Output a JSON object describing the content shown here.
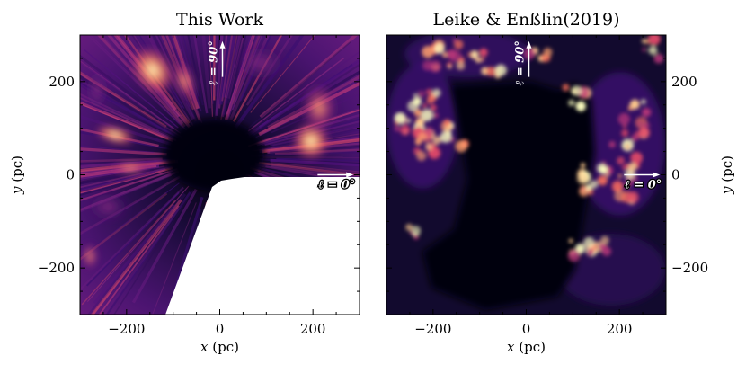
{
  "chart_data": [
    {
      "type": "heatmap",
      "title": "This Work",
      "xlabel": "x",
      "xlabel_unit": "(pc)",
      "ylabel": "y",
      "ylabel_unit": "(pc)",
      "xlim": [
        -300,
        300
      ],
      "ylim": [
        -300,
        300
      ],
      "xticks": [
        -200,
        0,
        200
      ],
      "yticks": [
        -200,
        0,
        200
      ],
      "x_tick_labels": [
        "−200",
        "0",
        "200"
      ],
      "y_tick_labels": [
        "−200",
        "0",
        "200"
      ],
      "ytick_side": "left",
      "colormap": "magma",
      "annotations": [
        {
          "text": "ℓ = 90°",
          "direction": "up",
          "x": 0,
          "y": 210
        },
        {
          "text": "ℓ = 0°",
          "direction": "right",
          "x": 210,
          "y": 0
        }
      ]
    },
    {
      "type": "heatmap",
      "title": "Leike & Enßlin(2019)",
      "xlabel": "x",
      "xlabel_unit": "(pc)",
      "ylabel": "y",
      "ylabel_unit": "(pc)",
      "xlim": [
        -300,
        300
      ],
      "ylim": [
        -300,
        300
      ],
      "xticks": [
        -200,
        0,
        200
      ],
      "yticks": [
        -200,
        0,
        200
      ],
      "x_tick_labels": [
        "−200",
        "0",
        "200"
      ],
      "y_tick_labels": [
        "−200",
        "0",
        "200"
      ],
      "ytick_side": "right",
      "colormap": "magma",
      "annotations": [
        {
          "text": "ℓ = 90°",
          "direction": "up",
          "x": 0,
          "y": 210
        },
        {
          "text": "ℓ = 0°",
          "direction": "right",
          "x": 210,
          "y": 0
        }
      ]
    }
  ],
  "colors": {
    "dark": "#05030f",
    "purple": "#3b0f70",
    "magenta": "#8c2981",
    "red": "#de4968",
    "orange": "#fe9f6d",
    "cream": "#fcfdbf"
  }
}
